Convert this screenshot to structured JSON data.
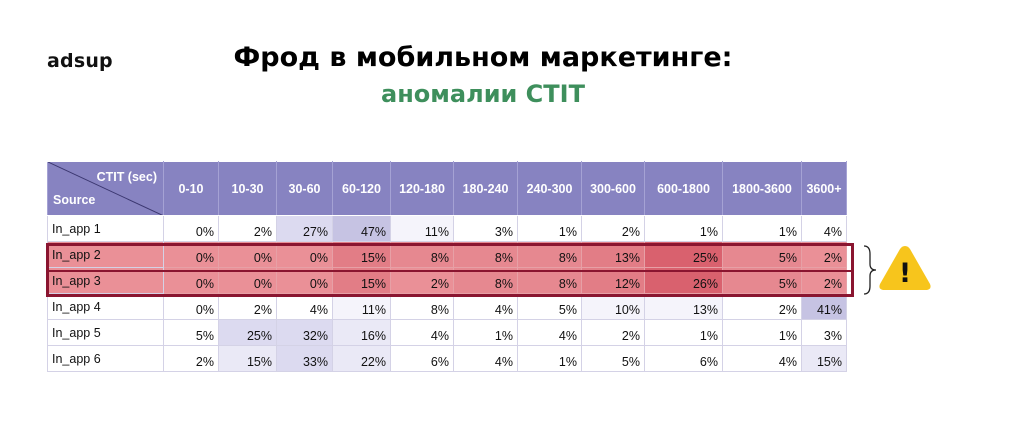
{
  "brand": {
    "logo_text": "adsup"
  },
  "header": {
    "title": "Фрод в мобильном маркетинге:",
    "subtitle": "аномалии CTIT"
  },
  "colors": {
    "header_bg": "#8783c1",
    "subtitle": "#3e8f5c",
    "highlight_border": "#8a1530",
    "warning": "#f7c51c"
  },
  "table": {
    "corner_top": "CTIT (sec)",
    "corner_bottom": "Source",
    "columns": [
      "0-10",
      "10-30",
      "30-60",
      "60-120",
      "120-180",
      "180-240",
      "240-300",
      "300-600",
      "600-1800",
      "1800-3600",
      "3600+"
    ],
    "rows": [
      {
        "source": "In_app 1",
        "values": [
          "0%",
          "2%",
          "27%",
          "47%",
          "11%",
          "3%",
          "1%",
          "2%",
          "1%",
          "1%",
          "4%"
        ],
        "highlighted": false
      },
      {
        "source": "In_app 2",
        "values": [
          "0%",
          "0%",
          "0%",
          "15%",
          "8%",
          "8%",
          "8%",
          "13%",
          "25%",
          "5%",
          "2%"
        ],
        "highlighted": true
      },
      {
        "source": "In_app 3",
        "values": [
          "0%",
          "0%",
          "0%",
          "15%",
          "2%",
          "8%",
          "8%",
          "12%",
          "26%",
          "5%",
          "2%"
        ],
        "highlighted": true
      },
      {
        "source": "In_app 4",
        "values": [
          "0%",
          "2%",
          "4%",
          "11%",
          "8%",
          "4%",
          "5%",
          "10%",
          "13%",
          "2%",
          "41%"
        ],
        "highlighted": false
      },
      {
        "source": "In_app 5",
        "values": [
          "5%",
          "25%",
          "32%",
          "16%",
          "4%",
          "1%",
          "4%",
          "2%",
          "1%",
          "1%",
          "3%"
        ],
        "highlighted": false
      },
      {
        "source": "In_app 6",
        "values": [
          "2%",
          "15%",
          "33%",
          "22%",
          "6%",
          "4%",
          "1%",
          "5%",
          "6%",
          "4%",
          "15%"
        ],
        "highlighted": false
      }
    ]
  },
  "annotation": {
    "icon": "warning-icon",
    "symbol": "!"
  }
}
